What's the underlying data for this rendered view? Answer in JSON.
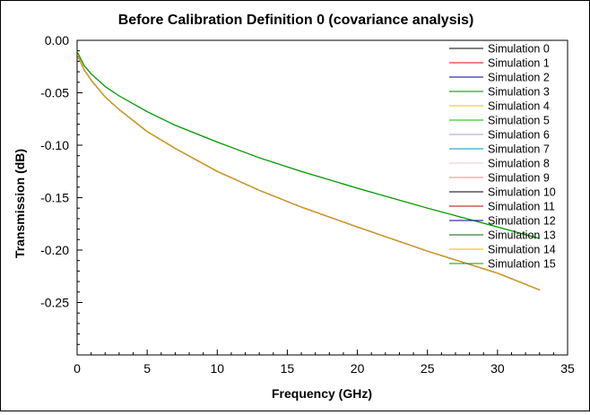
{
  "chart_data": {
    "type": "line",
    "title": "Before Calibration Definition 0 (covariance analysis)",
    "xlabel": "Frequency (GHz)",
    "ylabel": "Transmission (dB)",
    "xlim": [
      0,
      35
    ],
    "ylim": [
      -0.3,
      0.0
    ],
    "xticks": [
      0,
      5,
      10,
      15,
      20,
      25,
      30,
      35
    ],
    "xtick_labels": [
      "0",
      "5",
      "10",
      "15",
      "20",
      "25",
      "30",
      "35"
    ],
    "yticks": [
      0.0,
      -0.05,
      -0.1,
      -0.15,
      -0.2,
      -0.25
    ],
    "ytick_labels": [
      "0.00",
      "-0.05",
      "-0.10",
      "-0.15",
      "-0.20",
      "-0.25"
    ],
    "grid": false,
    "legend_position": "top-right",
    "x": [
      0.05,
      0.5,
      1,
      2,
      3,
      5,
      7,
      10,
      13,
      16,
      20,
      25,
      30,
      33
    ],
    "series": [
      {
        "name": "Simulation 0",
        "color": "#000000",
        "values": [
          -0.015,
          -0.028,
          -0.038,
          -0.054,
          -0.066,
          -0.087,
          -0.103,
          -0.125,
          -0.143,
          -0.159,
          -0.178,
          -0.201,
          -0.222,
          -0.238
        ]
      },
      {
        "name": "Simulation 1",
        "color": "#ff0000",
        "values": [
          -0.015,
          -0.028,
          -0.038,
          -0.054,
          -0.066,
          -0.087,
          -0.103,
          -0.125,
          -0.143,
          -0.159,
          -0.178,
          -0.201,
          -0.222,
          -0.238
        ]
      },
      {
        "name": "Simulation 2",
        "color": "#0000a0",
        "values": [
          -0.015,
          -0.028,
          -0.038,
          -0.054,
          -0.066,
          -0.087,
          -0.103,
          -0.125,
          -0.143,
          -0.159,
          -0.178,
          -0.201,
          -0.222,
          -0.238
        ]
      },
      {
        "name": "Simulation 3",
        "color": "#008000",
        "values": [
          -0.012,
          -0.024,
          -0.032,
          -0.044,
          -0.053,
          -0.068,
          -0.081,
          -0.097,
          -0.112,
          -0.125,
          -0.141,
          -0.16,
          -0.178,
          -0.189
        ]
      },
      {
        "name": "Simulation 4",
        "color": "#e6c800",
        "values": [
          -0.015,
          -0.028,
          -0.038,
          -0.054,
          -0.066,
          -0.087,
          -0.103,
          -0.125,
          -0.143,
          -0.159,
          -0.178,
          -0.201,
          -0.222,
          -0.238
        ]
      },
      {
        "name": "Simulation 5",
        "color": "#00c000",
        "values": [
          -0.012,
          -0.024,
          -0.032,
          -0.044,
          -0.053,
          -0.068,
          -0.081,
          -0.097,
          -0.112,
          -0.125,
          -0.141,
          -0.16,
          -0.178,
          -0.189
        ]
      },
      {
        "name": "Simulation 6",
        "color": "#a0a0c0",
        "values": [
          -0.015,
          -0.028,
          -0.038,
          -0.054,
          -0.066,
          -0.087,
          -0.103,
          -0.125,
          -0.143,
          -0.159,
          -0.178,
          -0.201,
          -0.222,
          -0.238
        ]
      },
      {
        "name": "Simulation 7",
        "color": "#0090c0",
        "values": [
          -0.015,
          -0.028,
          -0.038,
          -0.054,
          -0.066,
          -0.087,
          -0.103,
          -0.125,
          -0.143,
          -0.159,
          -0.178,
          -0.201,
          -0.222,
          -0.238
        ]
      },
      {
        "name": "Simulation 8",
        "color": "#f0c0d0",
        "values": [
          -0.015,
          -0.028,
          -0.038,
          -0.054,
          -0.066,
          -0.087,
          -0.103,
          -0.125,
          -0.143,
          -0.159,
          -0.178,
          -0.201,
          -0.222,
          -0.238
        ]
      },
      {
        "name": "Simulation 9",
        "color": "#ff8080",
        "values": [
          -0.015,
          -0.028,
          -0.038,
          -0.054,
          -0.066,
          -0.087,
          -0.103,
          -0.125,
          -0.143,
          -0.159,
          -0.178,
          -0.201,
          -0.222,
          -0.238
        ]
      },
      {
        "name": "Simulation 10",
        "color": "#000000",
        "values": [
          -0.015,
          -0.028,
          -0.038,
          -0.054,
          -0.066,
          -0.087,
          -0.103,
          -0.125,
          -0.143,
          -0.159,
          -0.178,
          -0.201,
          -0.222,
          -0.238
        ]
      },
      {
        "name": "Simulation 11",
        "color": "#c00000",
        "values": [
          -0.015,
          -0.028,
          -0.038,
          -0.054,
          -0.066,
          -0.087,
          -0.103,
          -0.125,
          -0.143,
          -0.159,
          -0.178,
          -0.201,
          -0.222,
          -0.238
        ]
      },
      {
        "name": "Simulation 12",
        "color": "#000080",
        "values": [
          -0.015,
          -0.028,
          -0.038,
          -0.054,
          -0.066,
          -0.087,
          -0.103,
          -0.125,
          -0.143,
          -0.159,
          -0.178,
          -0.201,
          -0.222,
          -0.238
        ]
      },
      {
        "name": "Simulation 13",
        "color": "#006000",
        "values": [
          -0.012,
          -0.024,
          -0.032,
          -0.044,
          -0.053,
          -0.068,
          -0.081,
          -0.097,
          -0.112,
          -0.125,
          -0.141,
          -0.16,
          -0.178,
          -0.189
        ]
      },
      {
        "name": "Simulation 14",
        "color": "#f0b400",
        "values": [
          -0.015,
          -0.028,
          -0.038,
          -0.054,
          -0.066,
          -0.087,
          -0.103,
          -0.125,
          -0.143,
          -0.159,
          -0.178,
          -0.201,
          -0.222,
          -0.238
        ]
      },
      {
        "name": "Simulation 15",
        "color": "#00a000",
        "values": [
          -0.012,
          -0.024,
          -0.032,
          -0.044,
          -0.053,
          -0.068,
          -0.081,
          -0.097,
          -0.112,
          -0.125,
          -0.141,
          -0.16,
          -0.178,
          -0.189
        ]
      }
    ]
  }
}
